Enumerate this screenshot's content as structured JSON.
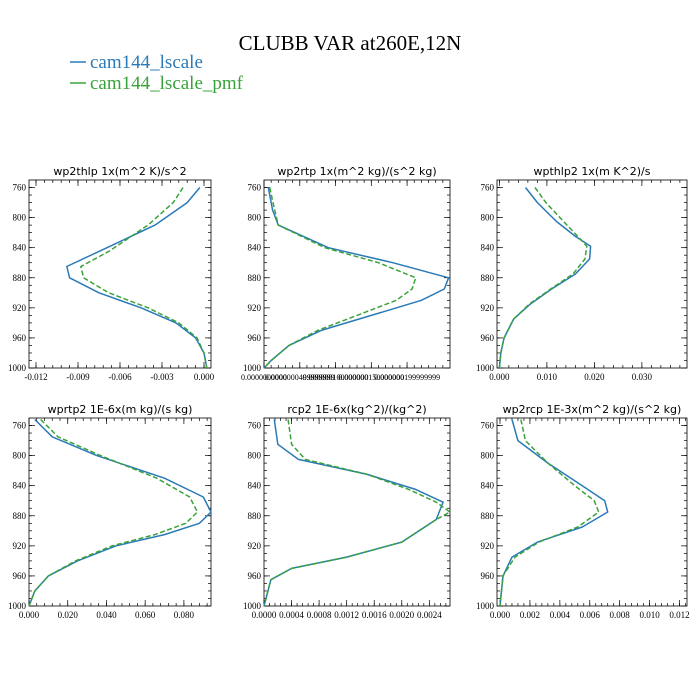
{
  "figure": {
    "title": "CLUBB VAR at260E,12N"
  },
  "legend": [
    {
      "label": "cam144_lscale",
      "color": "#2a7ab8",
      "dash": "solid"
    },
    {
      "label": "cam144_lscale_pmf",
      "color": "#3aa23a",
      "dash": "dashed"
    }
  ],
  "chart_data": [
    {
      "type": "line",
      "title": "wp2thlp  1x(m^2 K)/s^2",
      "xlim": [
        -0.0125,
        0.0005
      ],
      "ylim": [
        1000,
        750
      ],
      "xticks": [
        -0.012,
        -0.009,
        -0.006,
        -0.003,
        0.0
      ],
      "xtick_labels": [
        "-0.012",
        "-0.009",
        "-0.006",
        "-0.003",
        "0.000"
      ],
      "yticks": [
        760,
        800,
        840,
        880,
        920,
        960,
        1000
      ],
      "series": [
        {
          "name": "cam144_lscale",
          "color": "#2a7ab8",
          "dash": "solid",
          "points": [
            [
              -0.0003,
              760
            ],
            [
              -0.0012,
              780
            ],
            [
              -0.0035,
              810
            ],
            [
              -0.0075,
              845
            ],
            [
              -0.0098,
              865
            ],
            [
              -0.0096,
              880
            ],
            [
              -0.0075,
              900
            ],
            [
              -0.0045,
              920
            ],
            [
              -0.002,
              940
            ],
            [
              -0.0006,
              960
            ],
            [
              0.0,
              980
            ],
            [
              0.0002,
              1000
            ]
          ]
        },
        {
          "name": "cam144_lscale_pmf",
          "color": "#3aa23a",
          "dash": "dashed",
          "points": [
            [
              -0.0015,
              760
            ],
            [
              -0.0022,
              780
            ],
            [
              -0.004,
              810
            ],
            [
              -0.0068,
              845
            ],
            [
              -0.0088,
              865
            ],
            [
              -0.0086,
              880
            ],
            [
              -0.0068,
              900
            ],
            [
              -0.004,
              920
            ],
            [
              -0.0018,
              940
            ],
            [
              -0.0005,
              960
            ],
            [
              0.0,
              980
            ],
            [
              0.0002,
              1000
            ]
          ]
        }
      ]
    },
    {
      "type": "line",
      "title": "wp2rtp  1x(m^2 kg)/(s^2 kg)",
      "xlim": [
        0.0,
        2.6e-07
      ],
      "ylim": [
        1000,
        750
      ],
      "xticks": [
        0.0,
        5e-08,
        1e-07,
        1.5e-07,
        2e-07
      ],
      "xtick_labels": [
        "0.0000000000",
        "0.0000000499999999",
        "0.000000100000000",
        "0.000000150000000",
        "0.000000199999999"
      ],
      "yticks": [
        760,
        800,
        840,
        880,
        920,
        960,
        1000
      ],
      "series": [
        {
          "name": "cam144_lscale",
          "color": "#2a7ab8",
          "dash": "solid",
          "points": [
            [
              6e-09,
              760
            ],
            [
              1.2e-08,
              790
            ],
            [
              2e-08,
              810
            ],
            [
              9e-08,
              840
            ],
            [
              1.8e-07,
              860
            ],
            [
              2.58e-07,
              880
            ],
            [
              2.52e-07,
              895
            ],
            [
              2.2e-07,
              910
            ],
            [
              1.5e-07,
              930
            ],
            [
              8e-08,
              950
            ],
            [
              3.5e-08,
              970
            ],
            [
              1e-08,
              990
            ],
            [
              0.0,
              1000
            ]
          ]
        },
        {
          "name": "cam144_lscale_pmf",
          "color": "#3aa23a",
          "dash": "dashed",
          "points": [
            [
              8e-09,
              760
            ],
            [
              1.5e-08,
              790
            ],
            [
              2e-08,
              810
            ],
            [
              8.5e-08,
              840
            ],
            [
              1.6e-07,
              860
            ],
            [
              2.12e-07,
              880
            ],
            [
              2.07e-07,
              895
            ],
            [
              1.85e-07,
              910
            ],
            [
              1.3e-07,
              930
            ],
            [
              7.5e-08,
              950
            ],
            [
              3.5e-08,
              970
            ],
            [
              1e-08,
              990
            ],
            [
              0.0,
              1000
            ]
          ]
        }
      ]
    },
    {
      "type": "line",
      "title": "wpthlp2  1x(m K^2)/s",
      "xlim": [
        -0.0005,
        0.0395
      ],
      "ylim": [
        1000,
        750
      ],
      "xticks": [
        0.0,
        0.01,
        0.02,
        0.03
      ],
      "xtick_labels": [
        "0.000",
        "0.010",
        "0.020",
        "0.030"
      ],
      "yticks": [
        760,
        800,
        840,
        880,
        920,
        960,
        1000
      ],
      "series": [
        {
          "name": "cam144_lscale",
          "color": "#2a7ab8",
          "dash": "solid",
          "points": [
            [
              0.0055,
              760
            ],
            [
              0.008,
              780
            ],
            [
              0.012,
              805
            ],
            [
              0.016,
              825
            ],
            [
              0.0192,
              838
            ],
            [
              0.019,
              855
            ],
            [
              0.016,
              875
            ],
            [
              0.011,
              895
            ],
            [
              0.0065,
              915
            ],
            [
              0.003,
              935
            ],
            [
              0.001,
              960
            ],
            [
              0.0003,
              980
            ],
            [
              0.0,
              1000
            ]
          ]
        },
        {
          "name": "cam144_lscale_pmf",
          "color": "#3aa23a",
          "dash": "dashed",
          "points": [
            [
              0.0075,
              760
            ],
            [
              0.0098,
              780
            ],
            [
              0.0135,
              805
            ],
            [
              0.0165,
              825
            ],
            [
              0.0184,
              838
            ],
            [
              0.018,
              855
            ],
            [
              0.0155,
              875
            ],
            [
              0.0108,
              895
            ],
            [
              0.0063,
              915
            ],
            [
              0.003,
              935
            ],
            [
              0.001,
              960
            ],
            [
              0.0003,
              980
            ],
            [
              0.0,
              1000
            ]
          ]
        }
      ]
    },
    {
      "type": "line",
      "title": "wprtp2  1E-6x(m kg)/(s kg)",
      "xlim": [
        0.0,
        0.094
      ],
      "ylim": [
        1000,
        750
      ],
      "xticks": [
        0.0,
        0.02,
        0.04,
        0.06,
        0.08
      ],
      "xtick_labels": [
        "0.000",
        "0.020",
        "0.040",
        "0.060",
        "0.080"
      ],
      "yticks": [
        760,
        800,
        840,
        880,
        920,
        960,
        1000
      ],
      "series": [
        {
          "name": "cam144_lscale",
          "color": "#2a7ab8",
          "dash": "solid",
          "points": [
            [
              0.003,
              752
            ],
            [
              0.012,
              775
            ],
            [
              0.035,
              800
            ],
            [
              0.07,
              830
            ],
            [
              0.09,
              855
            ],
            [
              0.094,
              875
            ],
            [
              0.088,
              890
            ],
            [
              0.07,
              905
            ],
            [
              0.045,
              920
            ],
            [
              0.025,
              940
            ],
            [
              0.01,
              960
            ],
            [
              0.003,
              980
            ],
            [
              0.0,
              1000
            ]
          ]
        },
        {
          "name": "cam144_lscale_pmf",
          "color": "#3aa23a",
          "dash": "dashed",
          "points": [
            [
              0.006,
              752
            ],
            [
              0.015,
              775
            ],
            [
              0.037,
              800
            ],
            [
              0.066,
              830
            ],
            [
              0.083,
              855
            ],
            [
              0.087,
              875
            ],
            [
              0.081,
              890
            ],
            [
              0.065,
              905
            ],
            [
              0.043,
              920
            ],
            [
              0.024,
              940
            ],
            [
              0.01,
              960
            ],
            [
              0.003,
              980
            ],
            [
              0.0,
              1000
            ]
          ]
        }
      ]
    },
    {
      "type": "line",
      "title": "rcp2  1E-6x(kg^2)/(kg^2)",
      "xlim": [
        0.0,
        0.0027
      ],
      "ylim": [
        1000,
        750
      ],
      "xticks": [
        0.0,
        0.0004,
        0.0008,
        0.0012,
        0.0016,
        0.002,
        0.0024
      ],
      "xtick_labels": [
        "0.0000",
        "0.0004",
        "0.0008",
        "0.0012",
        "0.0016",
        "0.0020",
        "0.0024"
      ],
      "yticks": [
        760,
        800,
        840,
        880,
        920,
        960,
        1000
      ],
      "series": [
        {
          "name": "cam144_lscale",
          "color": "#2a7ab8",
          "dash": "solid",
          "points": [
            [
              0.00015,
              752
            ],
            [
              0.0002,
              785
            ],
            [
              0.0005,
              805
            ],
            [
              0.0015,
              825
            ],
            [
              0.0022,
              845
            ],
            [
              0.0026,
              862
            ],
            [
              0.0025,
              885
            ],
            [
              0.002,
              915
            ],
            [
              0.0012,
              935
            ],
            [
              0.0004,
              950
            ],
            [
              0.0001,
              965
            ],
            [
              0.0,
              1000
            ]
          ]
        },
        {
          "name": "cam144_lscale_pmf",
          "color": "#3aa23a",
          "dash": "dashed",
          "points": [
            [
              0.00035,
              752
            ],
            [
              0.0004,
              785
            ],
            [
              0.0006,
              805
            ],
            [
              0.0015,
              825
            ],
            [
              0.0021,
              845
            ],
            [
              0.0025,
              862
            ],
            [
              0.0027,
              875
            ],
            [
              0.0025,
              885
            ],
            [
              0.002,
              915
            ],
            [
              0.0012,
              935
            ],
            [
              0.0004,
              950
            ],
            [
              0.0001,
              965
            ],
            [
              0.0,
              1000
            ]
          ]
        }
      ]
    },
    {
      "type": "line",
      "title": "wp2rcp  1E-3x(m^2 kg)/(s^2 kg)",
      "xlim": [
        -0.0002,
        0.0125
      ],
      "ylim": [
        1000,
        750
      ],
      "xticks": [
        0.0,
        0.002,
        0.004,
        0.006,
        0.008,
        0.01,
        0.012
      ],
      "xtick_labels": [
        "0.000",
        "0.002",
        "0.004",
        "0.006",
        "0.008",
        "0.010",
        "0.012"
      ],
      "yticks": [
        760,
        800,
        840,
        880,
        920,
        960,
        1000
      ],
      "series": [
        {
          "name": "cam144_lscale",
          "color": "#2a7ab8",
          "dash": "solid",
          "points": [
            [
              0.0008,
              752
            ],
            [
              0.0012,
              780
            ],
            [
              0.0032,
              810
            ],
            [
              0.0055,
              840
            ],
            [
              0.007,
              860
            ],
            [
              0.0072,
              875
            ],
            [
              0.0055,
              895
            ],
            [
              0.0025,
              915
            ],
            [
              0.0008,
              935
            ],
            [
              0.0002,
              960
            ],
            [
              0.0,
              1000
            ]
          ]
        },
        {
          "name": "cam144_lscale_pmf",
          "color": "#3aa23a",
          "dash": "dashed",
          "points": [
            [
              0.0014,
              752
            ],
            [
              0.0017,
              780
            ],
            [
              0.0032,
              810
            ],
            [
              0.005,
              840
            ],
            [
              0.0063,
              860
            ],
            [
              0.0066,
              875
            ],
            [
              0.0052,
              895
            ],
            [
              0.0026,
              915
            ],
            [
              0.001,
              935
            ],
            [
              0.0002,
              960
            ],
            [
              0.0,
              1000
            ]
          ]
        }
      ]
    }
  ]
}
